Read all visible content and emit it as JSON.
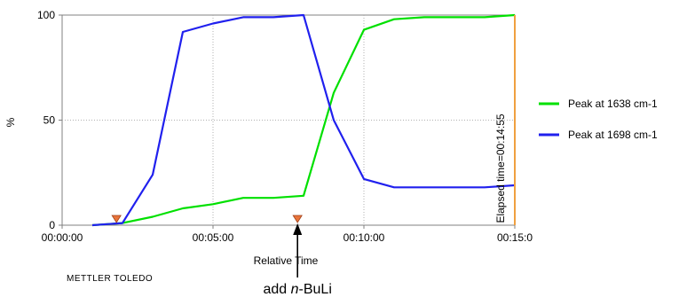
{
  "chart_data": {
    "type": "line",
    "xlabel": "Relative Time",
    "ylabel": "%",
    "x_ticks": [
      "00:00:00",
      "00:05:00",
      "00:10:00",
      "00:15:0"
    ],
    "y_ticks": [
      "0",
      "50",
      "100"
    ],
    "xlim": [
      0.0,
      15.0
    ],
    "ylim": [
      0,
      100
    ],
    "grid": true,
    "legend_position": "right",
    "x": [
      1.0,
      2.0,
      3.0,
      4.0,
      5.0,
      6.0,
      7.0,
      8.0,
      9.0,
      10.0,
      11.0,
      12.0,
      13.0,
      14.0,
      15.0
    ],
    "series": [
      {
        "name": "Peak at 1638 cm-1",
        "color": "#00e000",
        "values": [
          0,
          1,
          4,
          8,
          10,
          13,
          13,
          14,
          63,
          93,
          98,
          99,
          99,
          99,
          100
        ]
      },
      {
        "name": "Peak at 1698 cm-1",
        "color": "#2020ee",
        "values": [
          0,
          1,
          24,
          92,
          96,
          99,
          99,
          100,
          50,
          22,
          18,
          18,
          18,
          18,
          19
        ]
      }
    ],
    "markers": [
      {
        "x": 1.8,
        "color": "#e8743a"
      },
      {
        "x": 7.8,
        "color": "#e8743a"
      }
    ],
    "cursor": {
      "x": 15.0,
      "color": "#f0a040",
      "label": "Elapsed time=00:14:55"
    },
    "annotation": {
      "prefix": "add ",
      "italic": "n",
      "suffix": "-BuLi",
      "x": 7.8
    },
    "brand": "METTLER TOLEDO"
  }
}
